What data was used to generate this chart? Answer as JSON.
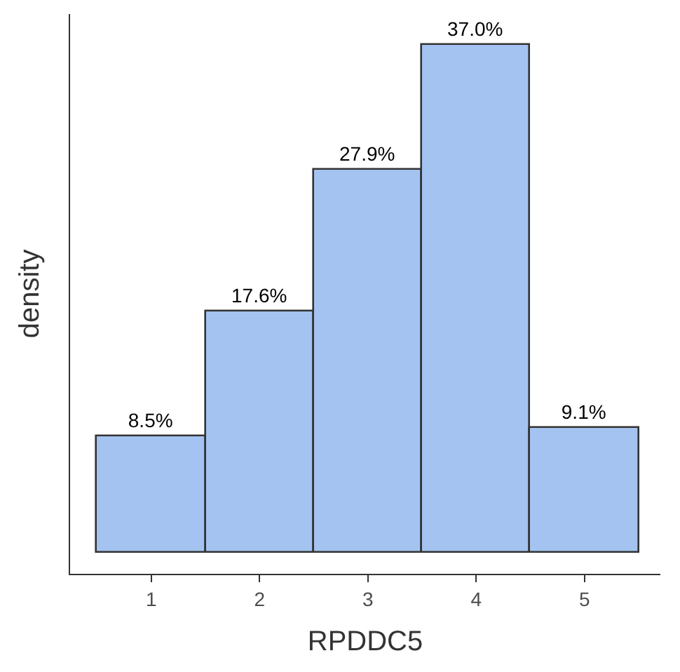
{
  "chart_data": {
    "type": "bar",
    "xlabel": "RPDDC5",
    "ylabel": "density",
    "categories": [
      "1",
      "2",
      "3",
      "4",
      "5"
    ],
    "values": [
      8.5,
      17.6,
      27.9,
      37.0,
      9.1
    ],
    "value_labels": [
      "8.5%",
      "17.6%",
      "27.9%",
      "37.0%",
      "9.1%"
    ],
    "color": "#a4c3f0",
    "ylim": [
      -1.5,
      39.2
    ],
    "tick_labels": "x"
  }
}
